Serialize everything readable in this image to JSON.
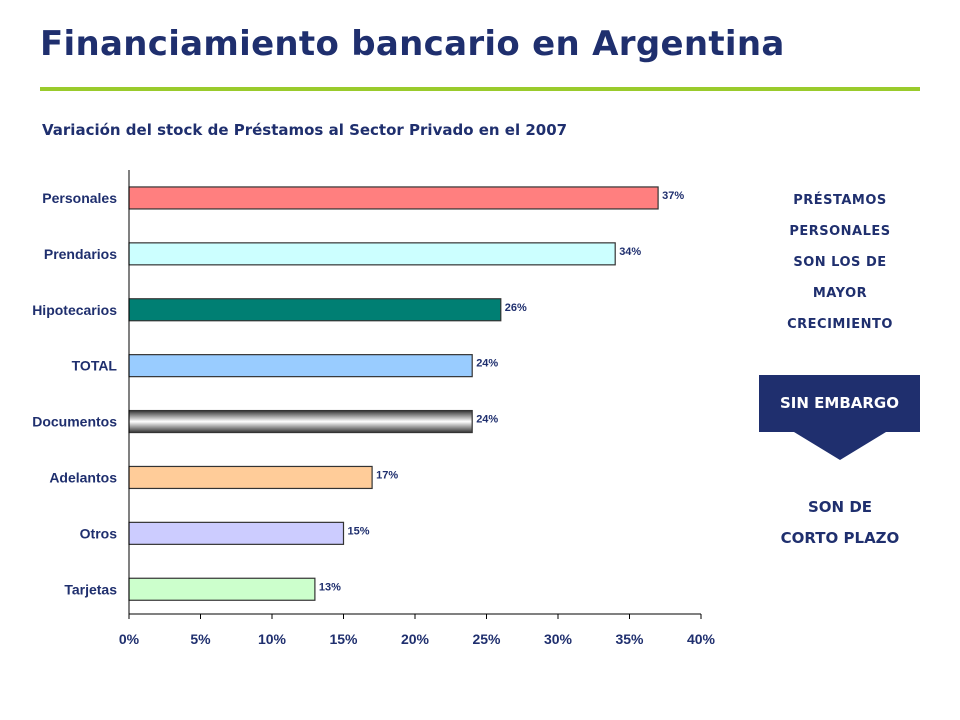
{
  "header": {
    "title": "Financiamiento bancario en Argentina",
    "subtitle": "Variación del stock de Préstamos al Sector Privado en el 2007"
  },
  "side_panel": {
    "note_lines": [
      "PRÉSTAMOS",
      "PERSONALES",
      "SON LOS DE",
      "MAYOR",
      "CRECIMIENTO"
    ],
    "callout": "SIN EMBARGO",
    "conclusion_lines": [
      "SON DE",
      "CORTO PLAZO"
    ]
  },
  "colors": {
    "title": "#1f2f6e",
    "rule": "#9acb2c",
    "callout_bg": "#1f2f6e"
  },
  "chart_data": {
    "type": "bar",
    "orientation": "horizontal",
    "categories": [
      "Personales",
      "Prendarios",
      "Hipotecarios",
      "TOTAL",
      "Documentos",
      "Adelantos",
      "Otros",
      "Tarjetas"
    ],
    "values": [
      37,
      34,
      26,
      24,
      24,
      17,
      15,
      13
    ],
    "value_labels": [
      "37%",
      "34%",
      "26%",
      "24%",
      "24%",
      "17%",
      "15%",
      "13%"
    ],
    "bar_colors": [
      "#ff7f7f",
      "#ccffff",
      "#007f73",
      "#99ccff",
      "gradient-gray",
      "#ffcc99",
      "#ccccff",
      "#ccffcc"
    ],
    "xlim": [
      0,
      40
    ],
    "x_ticks": [
      0,
      5,
      10,
      15,
      20,
      25,
      30,
      35,
      40
    ],
    "x_tick_labels": [
      "0%",
      "5%",
      "10%",
      "15%",
      "20%",
      "25%",
      "30%",
      "35%",
      "40%"
    ],
    "grid": false,
    "legend": "none"
  }
}
